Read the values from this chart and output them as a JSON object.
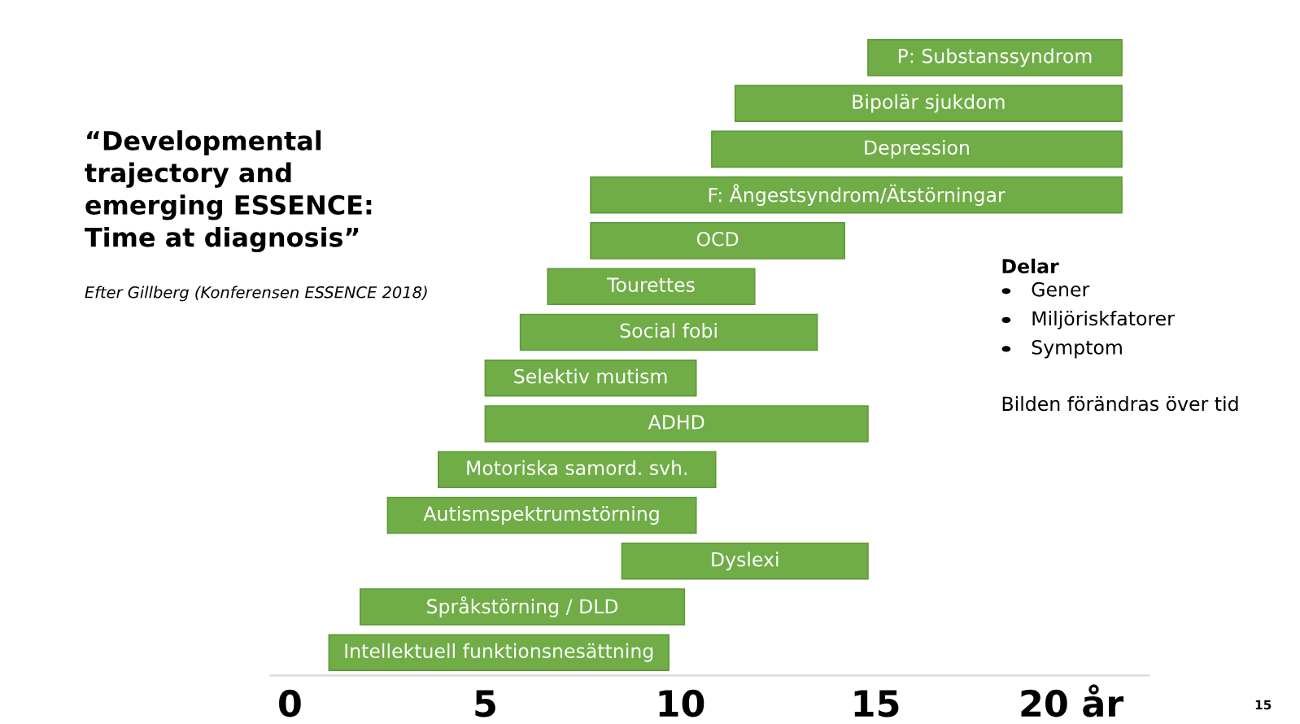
{
  "chart_data": {
    "type": "bar",
    "orientation": "horizontal",
    "title": "“Developmental\ntrajectory and\nemerging ESSENCE:\nTime at diagnosis”",
    "subtitle": "Efter Gillberg (Konferensen ESSENCE 2018)",
    "categories": [
      "P: Substanssyndrom",
      "Bipolär sjukdom",
      "Depression",
      "F: Ångestsyndrom/Ätstörningar",
      "OCD",
      "Tourettes",
      "Social fobi",
      "Selektiv mutism",
      "ADHD",
      "Motoriska samord. svh.",
      "Autismspektrumstörning",
      "Dyslexi",
      "Språkstörning / DLD",
      "Intellektuell funktionsnesättning"
    ],
    "base": [
      14.8,
      11.4,
      10.8,
      7.7,
      7.7,
      6.6,
      5.9,
      5.0,
      5.0,
      3.8,
      2.5,
      8.5,
      1.8,
      1.0
    ],
    "values": [
      6.5,
      9.9,
      10.5,
      13.6,
      6.5,
      5.3,
      7.6,
      5.4,
      9.8,
      7.1,
      7.9,
      6.3,
      8.3,
      8.7
    ],
    "color": "#70ad47",
    "xlim": [
      -0.5,
      22
    ],
    "xticks": [
      0,
      5,
      10,
      15,
      {
        "value": 20,
        "label": "20 år"
      }
    ],
    "grid": false,
    "legend": false,
    "annotations": [
      "Delar",
      "Gener",
      "Miljöriskfatorer",
      "Symptom",
      "Bilden förändras över tid",
      "15"
    ]
  }
}
